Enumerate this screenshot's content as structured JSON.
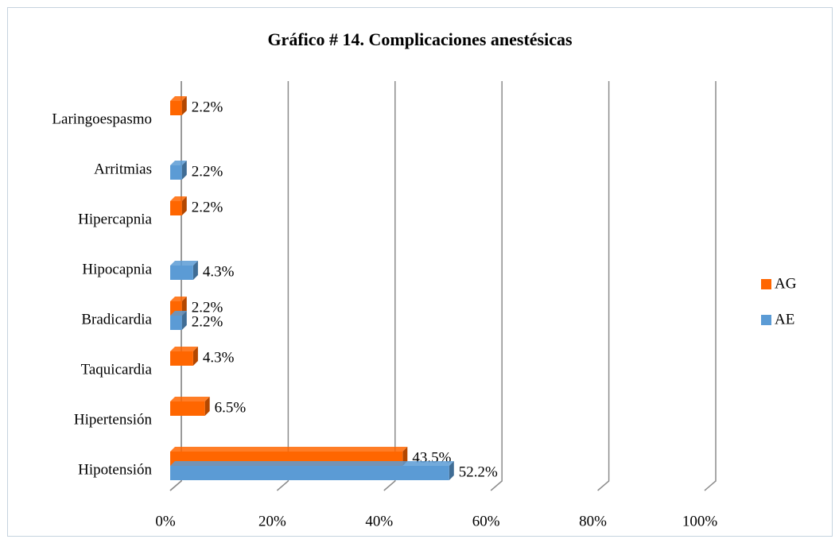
{
  "chart_data": {
    "type": "bar",
    "orientation": "horizontal",
    "title": "Gráfico # 14. Complicaciones anestésicas",
    "categories": [
      "Hipotensión",
      "Hipertensión",
      "Taquicardia",
      "Bradicardia",
      "Hipocapnia",
      "Hipercapnia",
      "Arritmias",
      "Laringoespasmo"
    ],
    "series": [
      {
        "name": "AG",
        "color": "#ff6600",
        "values": [
          43.5,
          6.5,
          4.3,
          2.2,
          null,
          2.2,
          null,
          2.2
        ],
        "value_labels": [
          "43.5%",
          "6.5%",
          "4.3%",
          "2.2%",
          null,
          "2.2%",
          null,
          "2.2%"
        ]
      },
      {
        "name": "AE",
        "color": "#5b9bd5",
        "values": [
          52.2,
          null,
          null,
          2.2,
          4.3,
          null,
          2.2,
          null
        ],
        "value_labels": [
          "52.2%",
          null,
          null,
          "2.2%",
          "4.3%",
          null,
          "2.2%",
          null
        ]
      }
    ],
    "xlim": [
      0,
      100
    ],
    "xticks": [
      {
        "value": 0,
        "label": "0%"
      },
      {
        "value": 20,
        "label": "20%"
      },
      {
        "value": 40,
        "label": "40%"
      },
      {
        "value": 60,
        "label": "60%"
      },
      {
        "value": 80,
        "label": "80%"
      },
      {
        "value": 100,
        "label": "100%"
      }
    ],
    "grid": true,
    "legend": "right"
  }
}
